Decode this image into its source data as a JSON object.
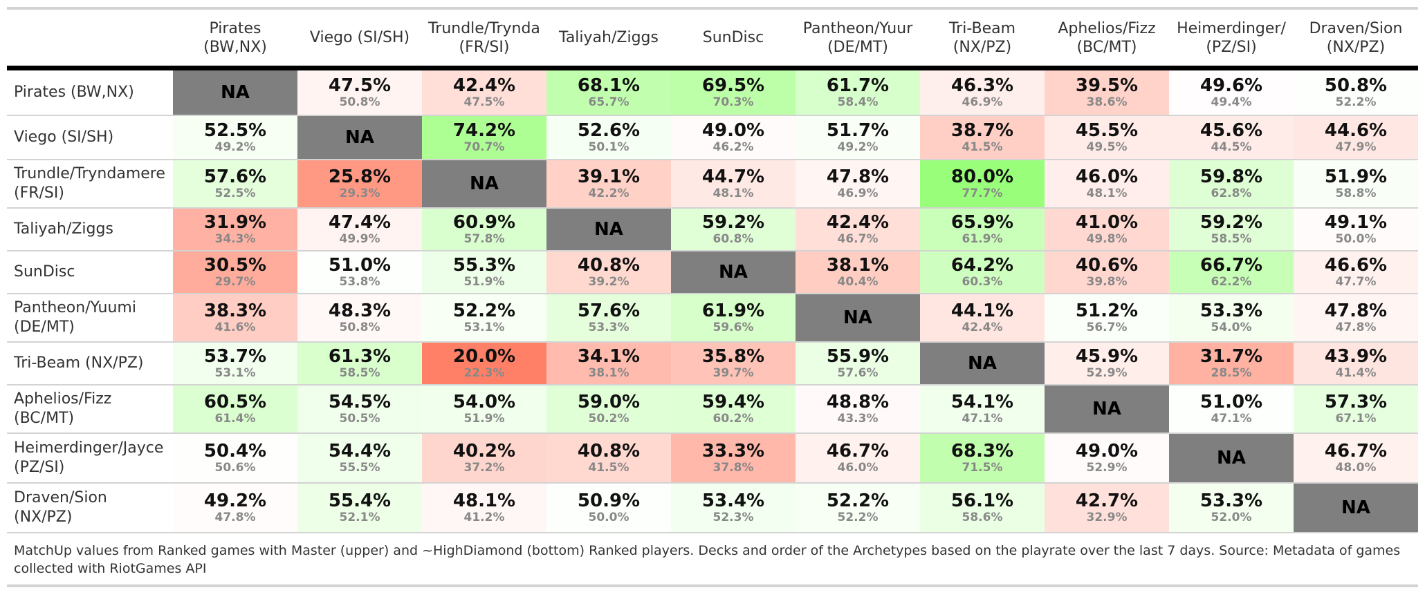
{
  "chart_data": {
    "type": "heatmap",
    "column_headers": [
      [
        "Pirates",
        "(BW,NX)"
      ],
      [
        "Viego (SI/SH)"
      ],
      [
        "Trundle/Trynda",
        "(FR/SI)"
      ],
      [
        "Taliyah/Ziggs"
      ],
      [
        "SunDisc"
      ],
      [
        "Pantheon/Yuur",
        "(DE/MT)"
      ],
      [
        "Tri-Beam",
        "(NX/PZ)"
      ],
      [
        "Aphelios/Fizz",
        "(BC/MT)"
      ],
      [
        "Heimerdinger/",
        "(PZ/SI)"
      ],
      [
        "Draven/Sion",
        "(NX/PZ)"
      ]
    ],
    "row_labels": [
      [
        "Pirates (BW,NX)"
      ],
      [
        "Viego (SI/SH)"
      ],
      [
        "Trundle/Tryndamere",
        "(FR/SI)"
      ],
      [
        "Taliyah/Ziggs"
      ],
      [
        "SunDisc"
      ],
      [
        "Pantheon/Yuumi",
        "(DE/MT)"
      ],
      [
        "Tri-Beam (NX/PZ)"
      ],
      [
        "Aphelios/Fizz",
        "(BC/MT)"
      ],
      [
        "Heimerdinger/Jayce",
        "(PZ/SI)"
      ],
      [
        "Draven/Sion",
        "(NX/PZ)"
      ]
    ],
    "upper_values": [
      [
        null,
        47.5,
        42.4,
        68.1,
        69.5,
        61.7,
        46.3,
        39.5,
        49.6,
        50.8
      ],
      [
        52.5,
        null,
        74.2,
        52.6,
        49.0,
        51.7,
        38.7,
        45.5,
        45.6,
        44.6
      ],
      [
        57.6,
        25.8,
        null,
        39.1,
        44.7,
        47.8,
        80.0,
        46.0,
        59.8,
        51.9
      ],
      [
        31.9,
        47.4,
        60.9,
        null,
        59.2,
        42.4,
        65.9,
        41.0,
        59.2,
        49.1
      ],
      [
        30.5,
        51.0,
        55.3,
        40.8,
        null,
        38.1,
        64.2,
        40.6,
        66.7,
        46.6
      ],
      [
        38.3,
        48.3,
        52.2,
        57.6,
        61.9,
        null,
        44.1,
        51.2,
        53.3,
        47.8
      ],
      [
        53.7,
        61.3,
        20.0,
        34.1,
        35.8,
        55.9,
        null,
        45.9,
        31.7,
        43.9
      ],
      [
        60.5,
        54.5,
        54.0,
        59.0,
        59.4,
        48.8,
        54.1,
        null,
        51.0,
        57.3
      ],
      [
        50.4,
        54.4,
        40.2,
        40.8,
        33.3,
        46.7,
        68.3,
        49.0,
        null,
        46.7
      ],
      [
        49.2,
        55.4,
        48.1,
        50.9,
        53.4,
        52.2,
        56.1,
        42.7,
        53.3,
        null
      ]
    ],
    "lower_values": [
      [
        null,
        50.8,
        47.5,
        65.7,
        70.3,
        58.4,
        46.9,
        38.6,
        49.4,
        52.2
      ],
      [
        49.2,
        null,
        70.7,
        50.1,
        46.2,
        49.2,
        41.5,
        49.5,
        44.5,
        47.9
      ],
      [
        52.5,
        29.3,
        null,
        42.2,
        48.1,
        46.9,
        77.7,
        48.1,
        62.8,
        58.8
      ],
      [
        34.3,
        49.9,
        57.8,
        null,
        60.8,
        46.7,
        61.9,
        49.8,
        58.5,
        50.0
      ],
      [
        29.7,
        53.8,
        51.9,
        39.2,
        null,
        40.4,
        60.3,
        39.8,
        62.2,
        47.7
      ],
      [
        41.6,
        50.8,
        53.1,
        53.3,
        59.6,
        null,
        42.4,
        56.7,
        54.0,
        47.8
      ],
      [
        53.1,
        58.5,
        22.3,
        38.1,
        39.7,
        57.6,
        null,
        52.9,
        28.5,
        41.4
      ],
      [
        61.4,
        50.5,
        51.9,
        50.2,
        60.2,
        43.3,
        47.1,
        null,
        47.1,
        67.1
      ],
      [
        50.6,
        55.5,
        37.2,
        41.5,
        37.8,
        46.0,
        71.5,
        52.9,
        null,
        48.0
      ],
      [
        47.8,
        52.1,
        41.2,
        50.0,
        52.3,
        52.2,
        58.6,
        32.9,
        52.0,
        null
      ]
    ],
    "na_label": "NA",
    "value_suffix": "%",
    "colors": {
      "low": "#ff8066",
      "mid": "#ffffff",
      "high": "#99ff7a",
      "na_fill": "#7f7f7f"
    },
    "footnote": "MatchUp values from Ranked games with Master (upper) and ~HighDiamond (bottom) Ranked players. Decks and order of the Archetypes based on the playrate over the last 7 days. Source: Metadata of games collected with RiotGames API"
  }
}
